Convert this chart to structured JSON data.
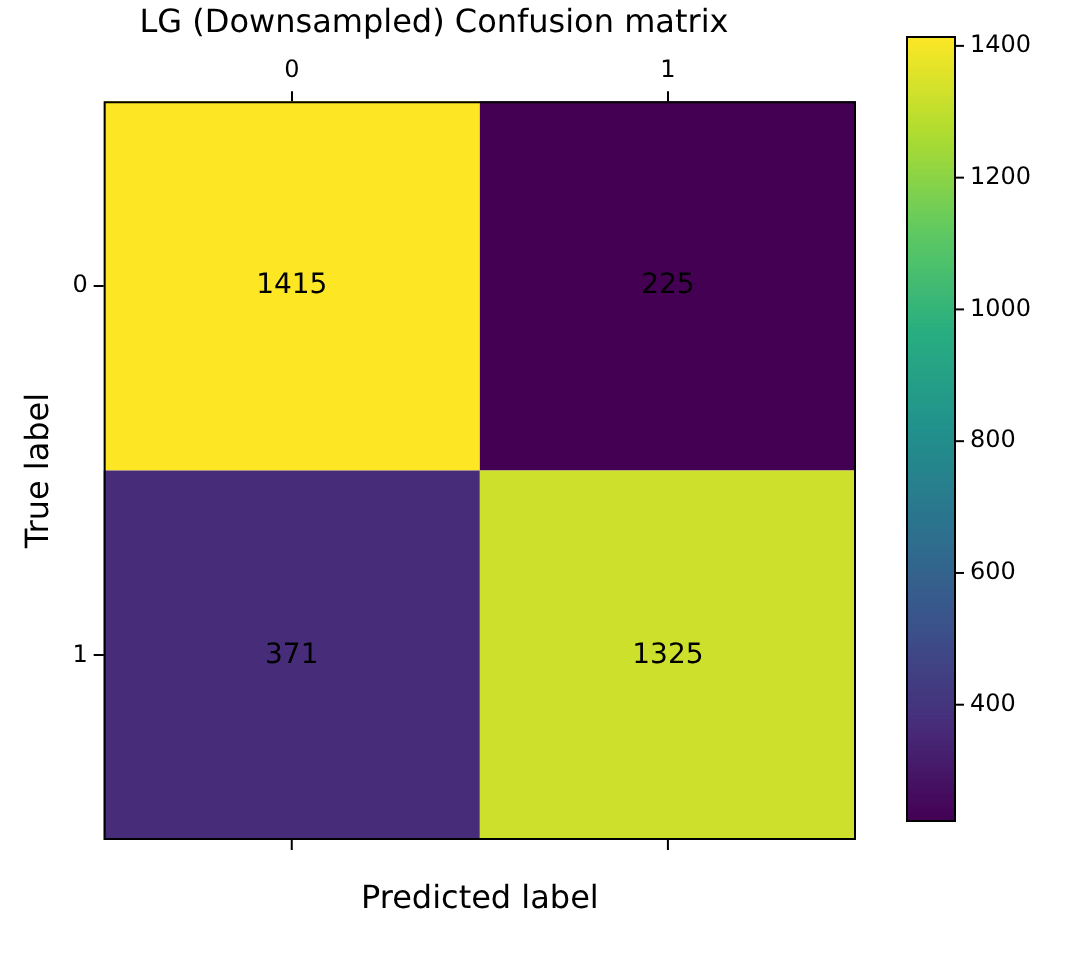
{
  "chart_data": {
    "type": "heatmap",
    "title": "LG (Downsampled) Confusion matrix",
    "xlabel": "Predicted label",
    "ylabel": "True label",
    "categories": [
      "0",
      "1"
    ],
    "y_categories": [
      "0",
      "1"
    ],
    "cells": [
      [
        1415,
        225
      ],
      [
        371,
        1325
      ]
    ],
    "clim": [
      225,
      1415
    ],
    "cticks": [
      400,
      600,
      800,
      1000,
      1200,
      1400
    ],
    "data_labels": true,
    "grid": false
  }
}
